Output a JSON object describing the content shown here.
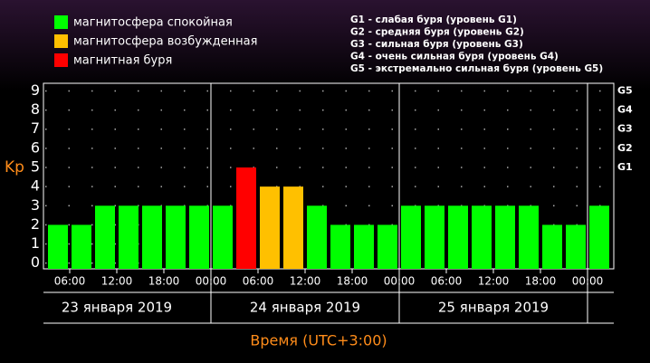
{
  "chart_data": {
    "type": "bar",
    "legend": [
      {
        "label": "магнитосфера спокойная",
        "color": "#00ff00"
      },
      {
        "label": "магнитосфера возбужденная",
        "color": "#ffc000"
      },
      {
        "label": "магнитная буря",
        "color": "#ff0000"
      }
    ],
    "storm_levels": [
      "G1 - слабая буря (уровень G1)",
      "G2 - средняя буря (уровень G2)",
      "G3 - сильная буря (уровень G3)",
      "G4 - очень сильная буря (уровень G4)",
      "G5 - экстремально сильная буря (уровень G5)"
    ],
    "y_label": "Kp",
    "x_label": "Время (UTC+3:00)",
    "days": [
      "23 января 2019",
      "24 января 2019",
      "25 января 2019"
    ],
    "x": [
      3,
      6,
      9,
      12,
      15,
      18,
      21,
      24,
      27,
      30,
      33,
      36,
      39,
      42,
      45,
      48,
      51,
      54,
      57,
      60,
      63,
      66,
      69,
      72
    ],
    "values": [
      2,
      2,
      3,
      3,
      3,
      3,
      3,
      3,
      5,
      4,
      4,
      3,
      2,
      2,
      2,
      3,
      3,
      3,
      3,
      3,
      3,
      2,
      2,
      3
    ],
    "colors": [
      "#00ff00",
      "#00ff00",
      "#00ff00",
      "#00ff00",
      "#00ff00",
      "#00ff00",
      "#00ff00",
      "#00ff00",
      "#ff0000",
      "#ffc000",
      "#ffc000",
      "#00ff00",
      "#00ff00",
      "#00ff00",
      "#00ff00",
      "#00ff00",
      "#00ff00",
      "#00ff00",
      "#00ff00",
      "#00ff00",
      "#00ff00",
      "#00ff00",
      "#00ff00",
      "#00ff00"
    ],
    "xlim": [
      3,
      75
    ],
    "xticks": [
      {
        "value": 6,
        "label": "06:00"
      },
      {
        "value": 12,
        "label": "12:00"
      },
      {
        "value": 18,
        "label": "18:00"
      },
      {
        "value": 24,
        "label": "00:00"
      },
      {
        "value": 30,
        "label": "06:00"
      },
      {
        "value": 36,
        "label": "12:00"
      },
      {
        "value": 42,
        "label": "18:00"
      },
      {
        "value": 48,
        "label": "00:00"
      },
      {
        "value": 54,
        "label": "06:00"
      },
      {
        "value": 60,
        "label": "12:00"
      },
      {
        "value": 66,
        "label": "18:00"
      },
      {
        "value": 72,
        "label": "00:00"
      }
    ],
    "ylim": [
      -0.3,
      9.4
    ],
    "yticks": [
      0,
      1,
      2,
      3,
      4,
      5,
      6,
      7,
      8,
      9
    ],
    "y2ticks": [
      {
        "value": 5,
        "label": "G1"
      },
      {
        "value": 6,
        "label": "G2"
      },
      {
        "value": 7,
        "label": "G3"
      },
      {
        "value": 8,
        "label": "G4"
      },
      {
        "value": 9,
        "label": "G5"
      }
    ],
    "grid": true
  }
}
